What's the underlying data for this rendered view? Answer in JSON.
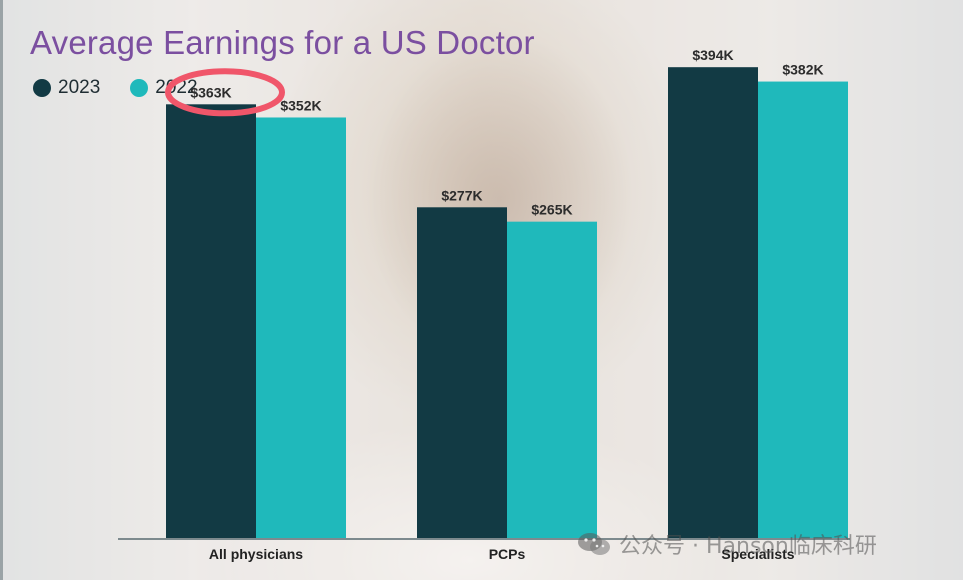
{
  "chart_data": {
    "type": "bar",
    "title": "Average Earnings for a US Doctor",
    "categories": [
      "All physicians",
      "PCPs",
      "Specialists"
    ],
    "series": [
      {
        "name": "2023",
        "values": [
          363,
          277,
          394
        ],
        "labels": [
          "$363K",
          "$277K",
          "$394K"
        ],
        "color": "#123a44"
      },
      {
        "name": "2022",
        "values": [
          352,
          265,
          382
        ],
        "labels": [
          "$352K",
          "$265K",
          "$382K"
        ],
        "color": "#1fb9bb"
      }
    ],
    "ylim": [
      0,
      400
    ],
    "grid": false,
    "legend": "top-left",
    "annotations": [
      {
        "type": "circle",
        "series": "2023",
        "category": "All physicians",
        "color": "#f0566a"
      }
    ]
  },
  "watermark": {
    "text": "公众号 · Hanson临床科研"
  }
}
